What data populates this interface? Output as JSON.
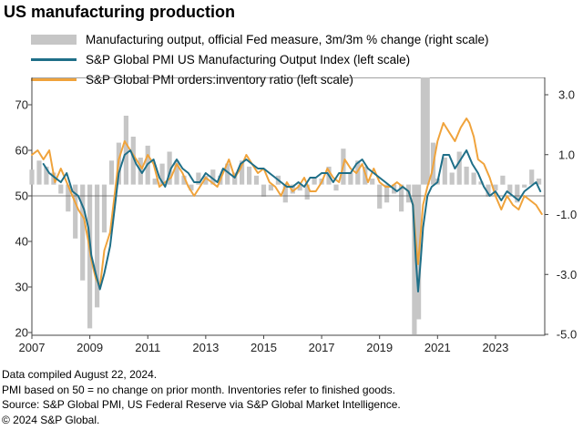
{
  "title": "US manufacturing production",
  "legend": {
    "bars": "Manufacturing output, official Fed measure, 3m/3m % change (right scale)",
    "pmi": "S&P Global PMI US Manufacturing Output Index (left scale)",
    "ratio": "S&P Global PMI orders:inventory ratio (left scale)"
  },
  "footnotes": [
    "Data compiled August 22, 2024.",
    "PMI based on 50 = no change on prior month. Inventories refer to finished goods.",
    "Source: S&P Global PMI, US Federal Reserve via S&P Global Market Intelligence.",
    "© 2024 S&P Global."
  ],
  "colors": {
    "bars": "#c6c6c6",
    "pmi": "#1f6f88",
    "ratio": "#f0a33b"
  },
  "chart_data": {
    "type": "bar",
    "title": "US manufacturing production",
    "x_ticks": [
      "2007",
      "2009",
      "2011",
      "2013",
      "2015",
      "2017",
      "2019",
      "2021",
      "2023"
    ],
    "x_range": [
      2007.0,
      2024.7
    ],
    "y_left": {
      "ticks": [
        "20",
        "30",
        "40",
        "50",
        "60",
        "70"
      ],
      "range": [
        20,
        75
      ]
    },
    "y_right": {
      "ticks": [
        "3.0",
        "1.0",
        "-1.0",
        "-3.0",
        "-5.0"
      ],
      "range": [
        -5,
        4.1
      ]
    },
    "series": [
      {
        "name": "Manufacturing output, official Fed measure, 3m/3m % change (right scale)",
        "axis": "right",
        "kind": "bar",
        "x": [
          2007.0,
          2007.25,
          2007.5,
          2007.75,
          2008.0,
          2008.25,
          2008.5,
          2008.75,
          2009.0,
          2009.25,
          2009.5,
          2009.75,
          2010.0,
          2010.25,
          2010.5,
          2010.75,
          2011.0,
          2011.25,
          2011.5,
          2011.75,
          2012.0,
          2012.25,
          2012.5,
          2012.75,
          2013.0,
          2013.25,
          2013.5,
          2013.75,
          2014.0,
          2014.25,
          2014.5,
          2014.75,
          2015.0,
          2015.25,
          2015.5,
          2015.75,
          2016.0,
          2016.25,
          2016.5,
          2016.75,
          2017.0,
          2017.25,
          2017.5,
          2017.75,
          2018.0,
          2018.25,
          2018.5,
          2018.75,
          2019.0,
          2019.25,
          2019.5,
          2019.75,
          2020.0,
          2020.2,
          2020.35,
          2020.5,
          2020.65,
          2020.85,
          2021.0,
          2021.25,
          2021.5,
          2021.75,
          2022.0,
          2022.25,
          2022.5,
          2022.75,
          2023.0,
          2023.25,
          2023.5,
          2023.75,
          2024.0,
          2024.25,
          2024.5
        ],
        "values": [
          0.5,
          0.8,
          0.6,
          0.4,
          -0.3,
          -0.9,
          -1.8,
          -3.2,
          -4.8,
          -4.1,
          -1.6,
          0.8,
          1.4,
          2.3,
          1.6,
          0.9,
          1.3,
          0.2,
          0.7,
          1.1,
          0.8,
          0.3,
          -0.2,
          0.4,
          0.3,
          0.5,
          0.3,
          0.7,
          0.4,
          0.8,
          0.6,
          0.3,
          -0.4,
          -0.2,
          0.3,
          -0.6,
          -0.3,
          -0.2,
          -0.5,
          0.2,
          0.2,
          0.6,
          -0.2,
          1.2,
          0.4,
          0.8,
          0.6,
          0.2,
          -0.8,
          -0.6,
          -0.3,
          -0.9,
          -0.6,
          -5.0,
          -4.5,
          4.1,
          3.7,
          1.4,
          0.2,
          0.9,
          0.4,
          1.1,
          0.6,
          0.4,
          0.1,
          -0.4,
          -0.2,
          0.3,
          -0.3,
          -0.6,
          -0.1,
          0.5,
          0.2
        ]
      },
      {
        "name": "S&P Global PMI US Manufacturing Output Index (left scale)",
        "axis": "left",
        "kind": "line",
        "x": [
          2007.4,
          2007.6,
          2007.8,
          2008.0,
          2008.2,
          2008.4,
          2008.6,
          2008.8,
          2008.95,
          2009.05,
          2009.2,
          2009.35,
          2009.5,
          2009.7,
          2009.85,
          2010.0,
          2010.2,
          2010.4,
          2010.6,
          2010.8,
          2011.0,
          2011.2,
          2011.4,
          2011.6,
          2011.8,
          2012.0,
          2012.2,
          2012.4,
          2012.6,
          2012.8,
          2013.0,
          2013.2,
          2013.4,
          2013.6,
          2013.8,
          2014.0,
          2014.2,
          2014.4,
          2014.6,
          2014.8,
          2015.0,
          2015.2,
          2015.4,
          2015.6,
          2015.8,
          2016.0,
          2016.2,
          2016.4,
          2016.6,
          2016.8,
          2017.0,
          2017.2,
          2017.4,
          2017.6,
          2017.8,
          2018.0,
          2018.2,
          2018.4,
          2018.6,
          2018.8,
          2019.0,
          2019.2,
          2019.4,
          2019.6,
          2019.8,
          2020.0,
          2020.15,
          2020.25,
          2020.33,
          2020.42,
          2020.5,
          2020.65,
          2020.8,
          2021.0,
          2021.2,
          2021.4,
          2021.6,
          2021.8,
          2022.0,
          2022.2,
          2022.4,
          2022.6,
          2022.8,
          2023.0,
          2023.2,
          2023.4,
          2023.6,
          2023.8,
          2024.0,
          2024.2,
          2024.4,
          2024.55
        ],
        "values": [
          57,
          55,
          54,
          53,
          55,
          51,
          50,
          47,
          43,
          37,
          33,
          29.5,
          33,
          39,
          47,
          55,
          59,
          60,
          57,
          55,
          57,
          58,
          54,
          52,
          56,
          58,
          56,
          55,
          53,
          53,
          55,
          54,
          53,
          56,
          55,
          54,
          57,
          58,
          57,
          56,
          56,
          55,
          54,
          53,
          52,
          52,
          53,
          52,
          54,
          54,
          55,
          55,
          53,
          55,
          55,
          55,
          57,
          58,
          56,
          55,
          54,
          53,
          52,
          51,
          52,
          51,
          48,
          36,
          29,
          36,
          43,
          50,
          52,
          53,
          59,
          59,
          56,
          58,
          60,
          57,
          55,
          52,
          50,
          51,
          49,
          51,
          50,
          49,
          51,
          52,
          53,
          51
        ]
      },
      {
        "name": "S&P Global PMI orders:inventory ratio (left scale)",
        "axis": "left",
        "kind": "line",
        "x": [
          2007.0,
          2007.2,
          2007.4,
          2007.6,
          2007.8,
          2008.0,
          2008.2,
          2008.4,
          2008.6,
          2008.8,
          2008.95,
          2009.05,
          2009.2,
          2009.35,
          2009.5,
          2009.7,
          2009.85,
          2010.0,
          2010.2,
          2010.4,
          2010.6,
          2010.8,
          2011.0,
          2011.2,
          2011.4,
          2011.6,
          2011.8,
          2012.0,
          2012.2,
          2012.4,
          2012.6,
          2012.8,
          2013.0,
          2013.2,
          2013.4,
          2013.6,
          2013.8,
          2014.0,
          2014.2,
          2014.4,
          2014.6,
          2014.8,
          2015.0,
          2015.2,
          2015.4,
          2015.6,
          2015.8,
          2016.0,
          2016.2,
          2016.4,
          2016.6,
          2016.8,
          2017.0,
          2017.2,
          2017.4,
          2017.6,
          2017.8,
          2018.0,
          2018.2,
          2018.4,
          2018.6,
          2018.8,
          2019.0,
          2019.2,
          2019.4,
          2019.6,
          2019.8,
          2020.0,
          2020.15,
          2020.25,
          2020.33,
          2020.42,
          2020.5,
          2020.65,
          2020.8,
          2021.0,
          2021.2,
          2021.4,
          2021.6,
          2021.8,
          2022.0,
          2022.1,
          2022.25,
          2022.4,
          2022.6,
          2022.8,
          2023.0,
          2023.2,
          2023.4,
          2023.6,
          2023.8,
          2024.0,
          2024.2,
          2024.4,
          2024.6
        ],
        "values": [
          59,
          60,
          58,
          60,
          53,
          56,
          53,
          50,
          47,
          45,
          40,
          36,
          32,
          30,
          38,
          42,
          50,
          58,
          62,
          60,
          58,
          56,
          59,
          57,
          52,
          53,
          54,
          57,
          55,
          52,
          50,
          52,
          54,
          53,
          52,
          55,
          58,
          54,
          56,
          59,
          57,
          55,
          56,
          53,
          52,
          50,
          53,
          51,
          52,
          54,
          51,
          51,
          53,
          56,
          54,
          53,
          58,
          56,
          55,
          57,
          53,
          56,
          53,
          52,
          52,
          53,
          52,
          51,
          48,
          40,
          35,
          42,
          48,
          52,
          55,
          62,
          66,
          64,
          62,
          65,
          67,
          66,
          63,
          58,
          57,
          54,
          50,
          47,
          50,
          48,
          47,
          50,
          49,
          48,
          46
        ]
      }
    ]
  }
}
